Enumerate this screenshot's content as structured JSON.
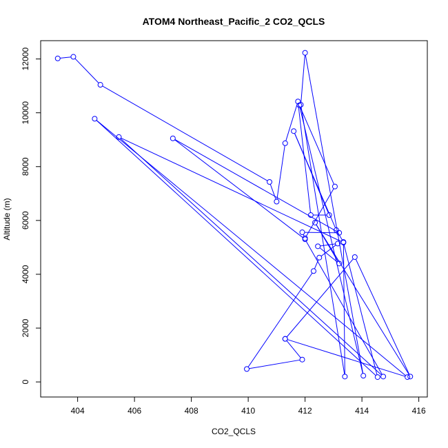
{
  "chart_data": {
    "type": "scatter",
    "title": "ATOM4 Northeast_Pacific_2 CO2_QCLS",
    "xlabel": "CO2_QCLS",
    "ylabel": "Altitude (m)",
    "xlim": [
      402.7,
      416.3
    ],
    "ylim": [
      -560,
      12680
    ],
    "xticks": [
      404,
      406,
      408,
      410,
      412,
      414,
      416
    ],
    "yticks": [
      0,
      2000,
      4000,
      6000,
      8000,
      10000,
      12000
    ],
    "grid": false,
    "legend": "none",
    "colors": {
      "series": "#0000ff",
      "axis": "#000000"
    },
    "series": [
      {
        "connected": true,
        "x": [
          403.3,
          403.85,
          404.8,
          410.75,
          411.0,
          411.3,
          411.75,
          412.2,
          412.85,
          411.6,
          413.1,
          413.35,
          413.4,
          411.85,
          412.0,
          414.05,
          411.8,
          413.05,
          412.0,
          411.9,
          413.2,
          407.35,
          412.0,
          414.75,
          405.45,
          413.35,
          414.55,
          404.6,
          415.6,
          411.3,
          413.75,
          415.7,
          412.35,
          413.2,
          412.45,
          413.15,
          412.5,
          412.3,
          409.95,
          411.9,
          411.3
        ],
        "y": [
          12020,
          12080,
          11040,
          7430,
          6700,
          8870,
          10420,
          6200,
          6200,
          9320,
          5640,
          5200,
          200,
          10300,
          12230,
          230,
          10280,
          7260,
          5340,
          5560,
          5540,
          9050,
          5300,
          200,
          9100,
          5180,
          180,
          9780,
          180,
          1600,
          4640,
          200,
          5920,
          4400,
          5040,
          5140,
          4620,
          4120,
          480,
          830,
          1600
        ]
      }
    ]
  }
}
